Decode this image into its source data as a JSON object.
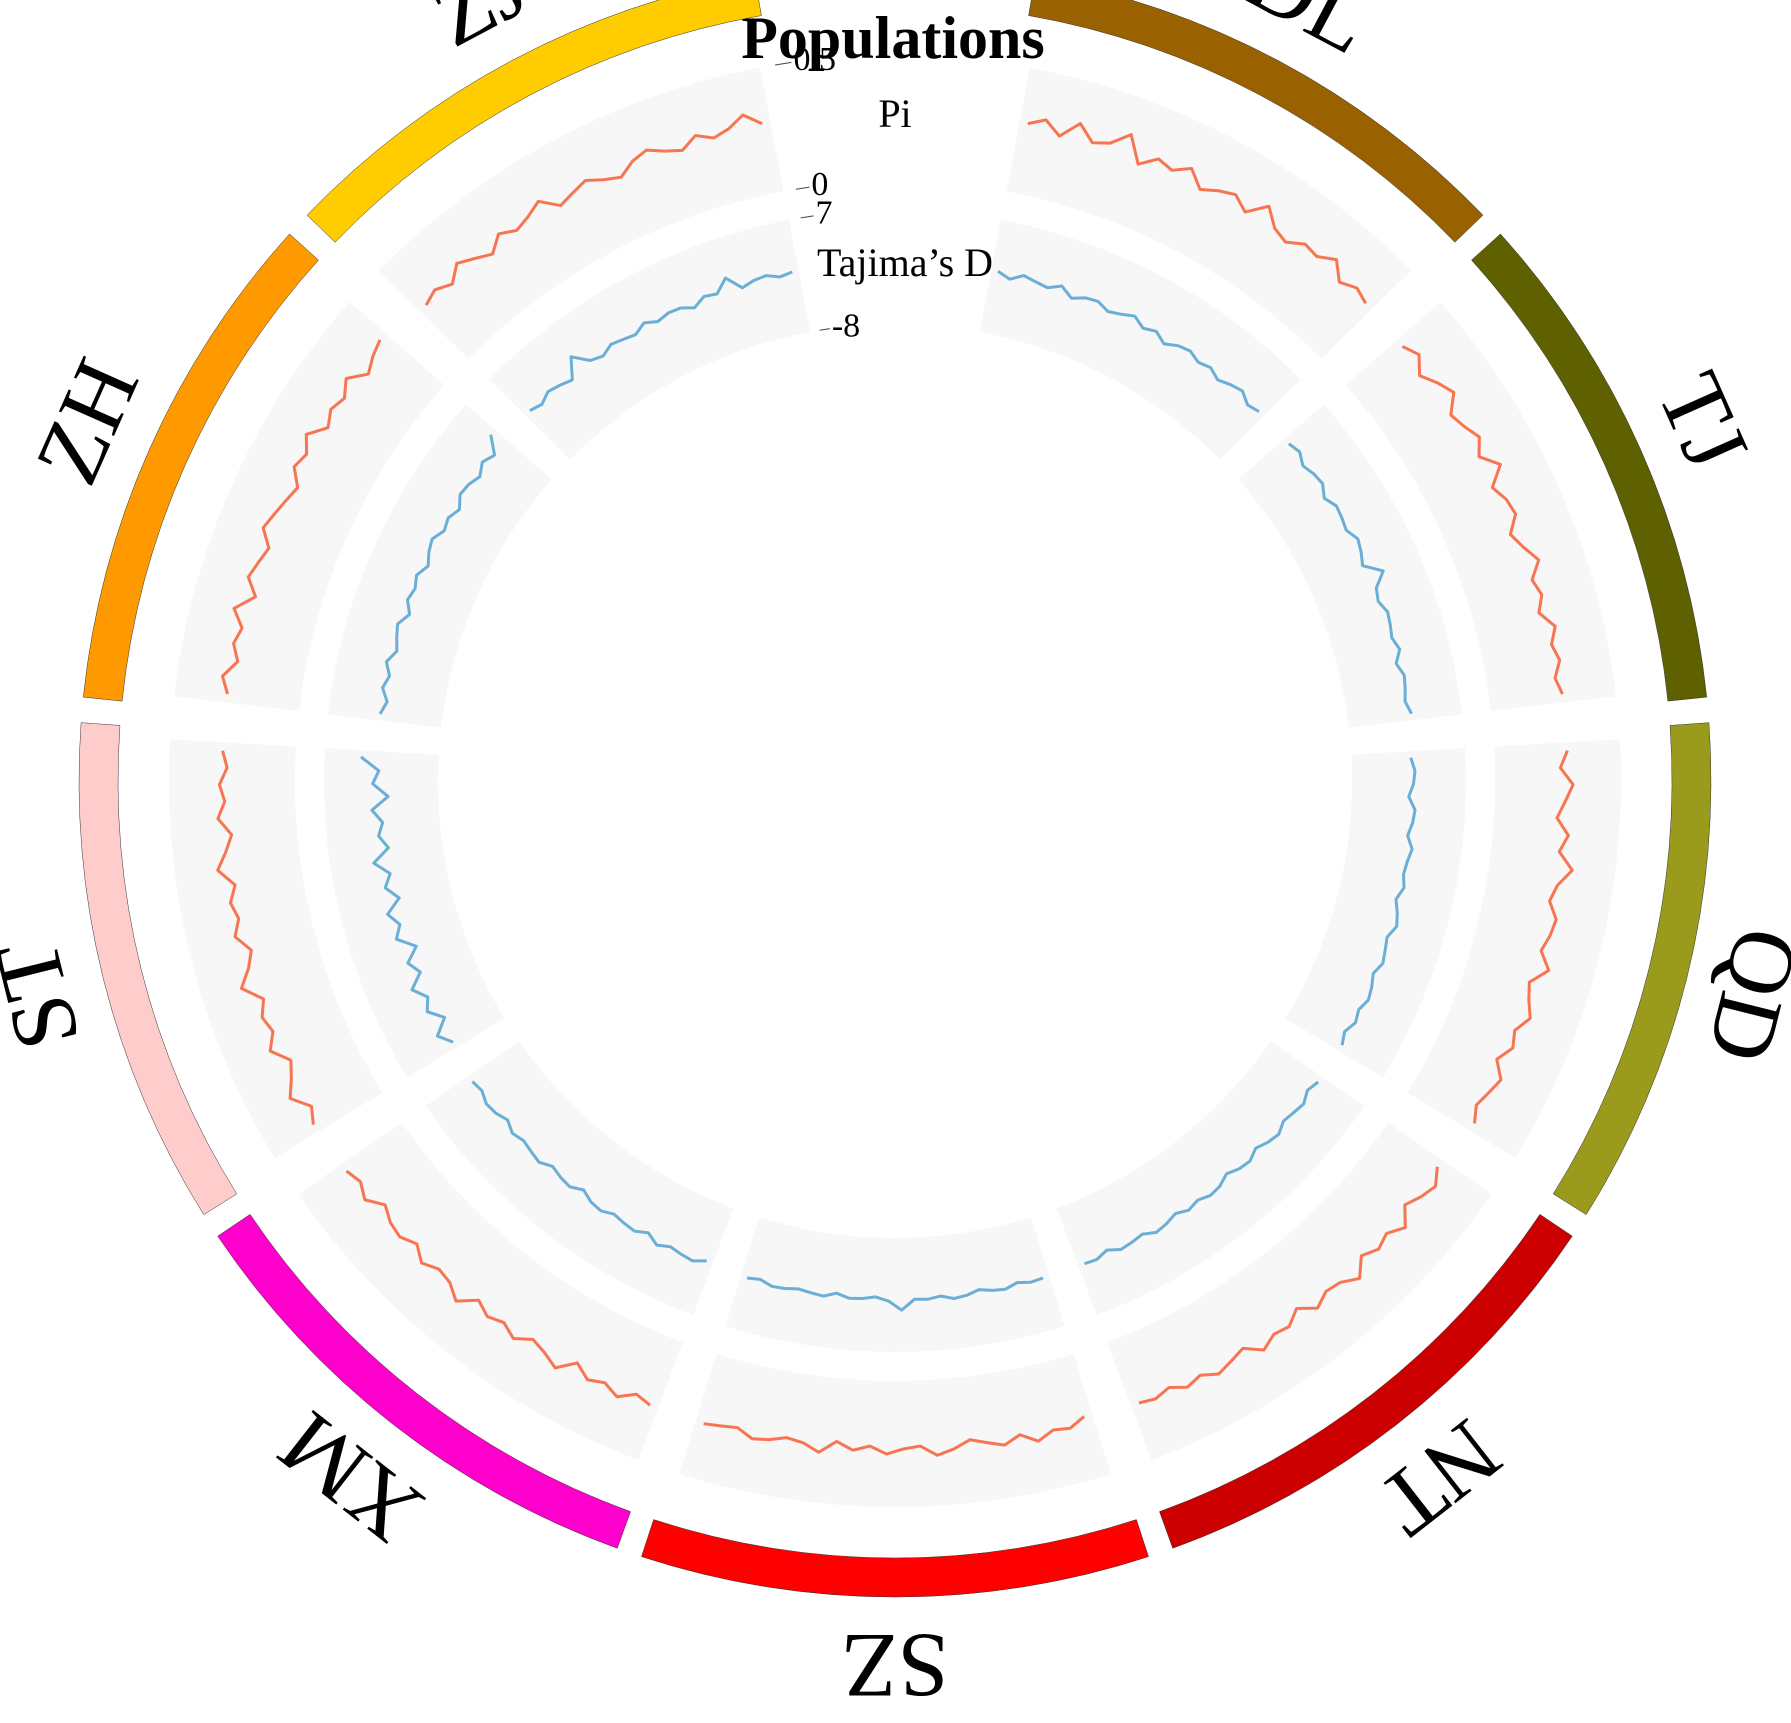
{
  "chart_data": {
    "type": "circos",
    "title": "Populations",
    "segments": [
      {
        "name": "DL",
        "color": "#996100"
      },
      {
        "name": "TJ",
        "color": "#5f6000"
      },
      {
        "name": "QD",
        "color": "#9a9a1c"
      },
      {
        "name": "NT",
        "color": "#cc0000"
      },
      {
        "name": "SZ",
        "color": "#ff0000"
      },
      {
        "name": "XM",
        "color": "#ff00cc"
      },
      {
        "name": "ST",
        "color": "#ffcccc"
      },
      {
        "name": "ZH",
        "color": "#ff9900"
      },
      {
        "name": "ZJ",
        "color": "#ffcc00"
      }
    ],
    "tracks": [
      {
        "label": "Pi",
        "color": "#f87552",
        "ylim": [
          0,
          0.5
        ],
        "yticks": [
          0,
          0.5
        ],
        "values": [
          [
            0.28,
            0.31,
            0.26,
            0.33,
            0.27,
            0.29,
            0.35,
            0.25,
            0.3,
            0.28,
            0.32,
            0.26,
            0.29,
            0.31,
            0.27,
            0.34,
            0.28,
            0.26,
            0.3,
            0.29,
            0.33,
            0.27,
            0.3,
            0.28
          ],
          [
            0.27,
            0.3,
            0.25,
            0.29,
            0.32,
            0.26,
            0.28,
            0.31,
            0.27,
            0.33,
            0.26,
            0.29,
            0.3,
            0.25,
            0.28,
            0.32,
            0.27,
            0.29,
            0.26,
            0.31,
            0.28,
            0.3,
            0.27,
            0.29
          ],
          [
            0.29,
            0.26,
            0.31,
            0.28,
            0.25,
            0.3,
            0.27,
            0.33,
            0.28,
            0.26,
            0.3,
            0.29,
            0.27,
            0.32,
            0.26,
            0.28,
            0.31,
            0.27,
            0.29,
            0.25,
            0.3,
            0.28,
            0.26,
            0.29
          ],
          [
            0.26,
            0.3,
            0.28,
            0.25,
            0.31,
            0.27,
            0.29,
            0.26,
            0.32,
            0.28,
            0.27,
            0.3,
            0.25,
            0.29,
            0.28,
            0.31,
            0.26,
            0.28,
            0.3,
            0.27,
            0.29,
            0.26,
            0.28,
            0.27
          ],
          [
            0.25,
            0.28,
            0.27,
            0.3,
            0.26,
            0.29,
            0.27,
            0.25,
            0.28,
            0.3,
            0.26,
            0.27,
            0.29,
            0.26,
            0.28,
            0.25,
            0.3,
            0.27,
            0.26,
            0.28,
            0.29,
            0.26,
            0.27,
            0.28
          ],
          [
            0.28,
            0.26,
            0.3,
            0.27,
            0.29,
            0.25,
            0.31,
            0.28,
            0.26,
            0.3,
            0.27,
            0.29,
            0.26,
            0.32,
            0.28,
            0.27,
            0.3,
            0.26,
            0.29,
            0.28,
            0.25,
            0.3,
            0.27,
            0.29
          ],
          [
            0.3,
            0.27,
            0.33,
            0.29,
            0.26,
            0.32,
            0.28,
            0.3,
            0.27,
            0.34,
            0.29,
            0.26,
            0.31,
            0.28,
            0.3,
            0.27,
            0.33,
            0.29,
            0.26,
            0.31,
            0.28,
            0.3,
            0.27,
            0.29
          ],
          [
            0.29,
            0.32,
            0.27,
            0.3,
            0.28,
            0.33,
            0.26,
            0.31,
            0.29,
            0.27,
            0.32,
            0.3,
            0.28,
            0.26,
            0.31,
            0.29,
            0.33,
            0.27,
            0.3,
            0.28,
            0.32,
            0.26,
            0.29,
            0.31
          ],
          [
            0.27,
            0.29,
            0.26,
            0.31,
            0.28,
            0.25,
            0.3,
            0.27,
            0.29,
            0.32,
            0.26,
            0.28,
            0.3,
            0.27,
            0.25,
            0.29,
            0.31,
            0.28,
            0.26,
            0.3,
            0.27,
            0.29,
            0.33,
            0.28
          ]
        ]
      },
      {
        "label": "Tajima’s D",
        "color": "#6baed6",
        "ylim": [
          -8,
          7
        ],
        "yticks": [
          -8,
          7
        ],
        "values": [
          [
            0.3,
            -0.4,
            0.5,
            0.1,
            -0.2,
            0.6,
            -0.5,
            0.2,
            0.4,
            -0.3,
            0.1,
            0.7,
            -0.2,
            0.3,
            -0.6,
            0.2,
            0.5,
            -0.1,
            0.3,
            -0.4,
            0.2,
            0.6,
            -0.3,
            0.1
          ],
          [
            0.1,
            0.5,
            -0.3,
            0.2,
            0.4,
            -0.5,
            0.3,
            0.1,
            -0.2,
            0.6,
            0.2,
            -0.4,
            1.8,
            0.1,
            -0.3,
            0.4,
            0.2,
            -0.1,
            0.5,
            -0.4,
            0.3,
            0.1,
            -0.2,
            0.4
          ],
          [
            -0.2,
            0.3,
            0.1,
            -0.5,
            0.4,
            0.2,
            -0.3,
            0.5,
            0.1,
            -0.1,
            0.3,
            -0.4,
            0.2,
            0.6,
            -0.2,
            0.1,
            0.4,
            -0.3,
            0.2,
            0.5,
            -0.1,
            0.3,
            -0.4,
            0.2
          ],
          [
            0.2,
            -0.3,
            0.4,
            0.1,
            -0.2,
            0.5,
            0.2,
            -0.4,
            0.3,
            0.1,
            -0.5,
            0.2,
            0.4,
            -0.1,
            0.3,
            -0.3,
            0.2,
            0.5,
            -0.2,
            0.1,
            0.3,
            -0.4,
            0.2,
            0.1
          ],
          [
            0.1,
            0.2,
            -0.2,
            0.3,
            0.1,
            -0.3,
            0.2,
            0.4,
            -0.1,
            0.2,
            0.1,
            1.5,
            0.3,
            -0.2,
            0.1,
            0.2,
            -0.3,
            0.3,
            0.1,
            -0.1,
            0.2,
            0.3,
            -0.2,
            0.1
          ],
          [
            -0.3,
            0.4,
            0.2,
            -0.1,
            0.5,
            -0.4,
            0.3,
            0.1,
            -0.2,
            0.4,
            0.2,
            -0.5,
            0.3,
            0.1,
            -0.3,
            0.5,
            0.2,
            -0.1,
            0.3,
            -0.4,
            0.2,
            0.4,
            -0.2,
            0.1
          ],
          [
            -0.6,
            0.8,
            -1.2,
            0.5,
            -0.4,
            1.1,
            -0.8,
            0.3,
            -1.5,
            0.7,
            -0.3,
            0.9,
            -1.1,
            0.4,
            -0.6,
            1.3,
            -0.9,
            0.2,
            -0.5,
            0.8,
            -1.4,
            0.6,
            -0.2,
            2.2
          ],
          [
            0.2,
            -0.5,
            0.4,
            -0.2,
            0.6,
            -0.4,
            0.1,
            0.5,
            -0.6,
            0.3,
            -0.1,
            0.4,
            -0.5,
            0.2,
            0.6,
            -0.3,
            0.1,
            -0.6,
            0.4,
            0.2,
            -0.4,
            0.5,
            -0.2,
            1.9
          ],
          [
            0.3,
            -0.2,
            0.5,
            0.1,
            -0.4,
            2.1,
            0.2,
            -0.3,
            0.4,
            0.1,
            -0.2,
            0.6,
            -0.1,
            0.3,
            0.2,
            -0.5,
            0.4,
            0.1,
            1.7,
            -0.2,
            0.3,
            0.5,
            -0.1,
            0.2
          ]
        ]
      }
    ]
  }
}
